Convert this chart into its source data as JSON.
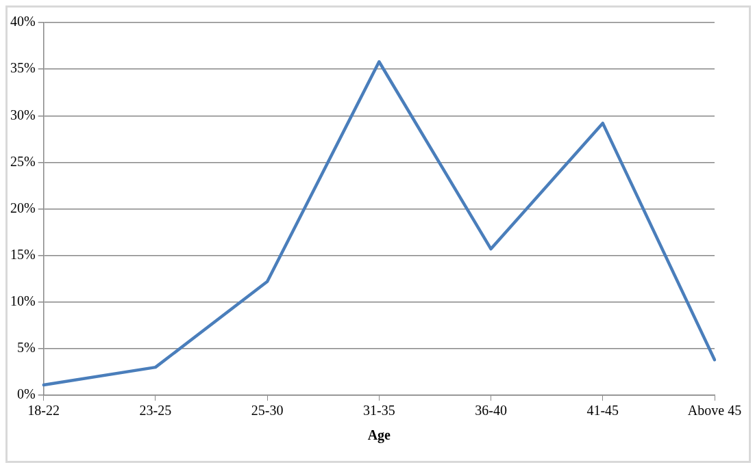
{
  "chart_data": {
    "type": "line",
    "xlabel": "Age",
    "categories": [
      "18-22",
      "23-25",
      "25-30",
      "31-35",
      "36-40",
      "41-45",
      "Above 45"
    ],
    "series": [
      {
        "color": "#4a7ebb",
        "values": [
          1.1,
          3.0,
          12.2,
          35.8,
          15.7,
          29.2,
          3.8
        ]
      }
    ],
    "ylim": [
      0,
      40
    ],
    "yticks": [
      {
        "value": 0,
        "label": "0%"
      },
      {
        "value": 5,
        "label": "5%"
      },
      {
        "value": 10,
        "label": "10%"
      },
      {
        "value": 15,
        "label": "15%"
      },
      {
        "value": 20,
        "label": "20%"
      },
      {
        "value": 25,
        "label": "25%"
      },
      {
        "value": 30,
        "label": "30%"
      },
      {
        "value": 35,
        "label": "35%"
      },
      {
        "value": 40,
        "label": "40%"
      }
    ],
    "grid": "y",
    "legend": false,
    "marker": "none",
    "line_style": "solid"
  }
}
